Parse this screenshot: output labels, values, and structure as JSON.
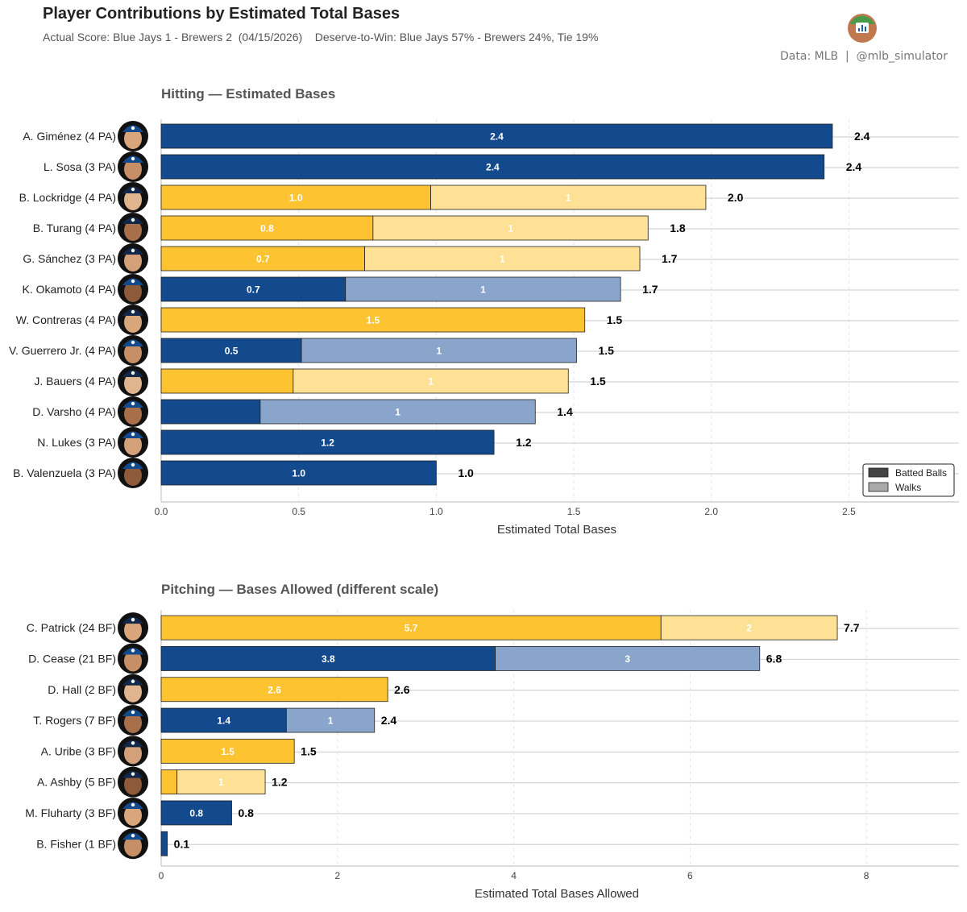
{
  "header": {
    "title": "Player Contributions by Estimated Total Bases",
    "subtitle": "Actual Score: Blue Jays 1 - Brewers 2  (04/15/2026)    Deserve-to-Win: Blue Jays 57% - Brewers 24%, Tie 19%",
    "credit": "Data: MLB  |  @mlb_simulator"
  },
  "colors": {
    "blue_dark": "#134a8e",
    "blue_light": "#8aa5cb",
    "gold_dark": "#fdc331",
    "gold_light": "#fee195",
    "legend_dark": "#444444",
    "legend_light": "#aaaaaa"
  },
  "legend": {
    "batted_balls": "Batted Balls",
    "walks": "Walks"
  },
  "chart_data": [
    {
      "type": "bar",
      "orientation": "horizontal",
      "stacked": true,
      "title": "Hitting — Estimated Bases",
      "xlabel": "Estimated Total Bases",
      "xlim": [
        0,
        2.9
      ],
      "xticks": [
        0,
        0.5,
        1,
        1.5,
        2,
        2.5
      ],
      "xtick_labels": [
        "0.0",
        "0.5",
        "1.0",
        "1.5",
        "2.0",
        "2.5"
      ],
      "legend_position": "bottom-right",
      "rows": [
        {
          "label": "A. Giménez  (4 PA)",
          "team": "blue",
          "batted": 2.44,
          "walks": 0,
          "batted_label": "2.4",
          "walks_label": "",
          "total_label": "2.4"
        },
        {
          "label": "L. Sosa  (3 PA)",
          "team": "blue",
          "batted": 2.41,
          "walks": 0,
          "batted_label": "2.4",
          "walks_label": "",
          "total_label": "2.4"
        },
        {
          "label": "B. Lockridge  (4 PA)",
          "team": "gold",
          "batted": 0.98,
          "walks": 1,
          "batted_label": "1.0",
          "walks_label": "1",
          "total_label": "2.0"
        },
        {
          "label": "B. Turang  (4 PA)",
          "team": "gold",
          "batted": 0.77,
          "walks": 1,
          "batted_label": "0.8",
          "walks_label": "1",
          "total_label": "1.8"
        },
        {
          "label": "G. Sánchez  (3 PA)",
          "team": "gold",
          "batted": 0.74,
          "walks": 1,
          "batted_label": "0.7",
          "walks_label": "1",
          "total_label": "1.7"
        },
        {
          "label": "K. Okamoto  (4 PA)",
          "team": "blue",
          "batted": 0.67,
          "walks": 1,
          "batted_label": "0.7",
          "walks_label": "1",
          "total_label": "1.7"
        },
        {
          "label": "W. Contreras  (4 PA)",
          "team": "gold",
          "batted": 1.54,
          "walks": 0,
          "batted_label": "1.5",
          "walks_label": "",
          "total_label": "1.5"
        },
        {
          "label": "V. Guerrero Jr.  (4 PA)",
          "team": "blue",
          "batted": 0.51,
          "walks": 1,
          "batted_label": "0.5",
          "walks_label": "1",
          "total_label": "1.5"
        },
        {
          "label": "J. Bauers  (4 PA)",
          "team": "gold",
          "batted": 0.48,
          "walks": 1,
          "batted_label": "",
          "walks_label": "1",
          "total_label": "1.5"
        },
        {
          "label": "D. Varsho  (4 PA)",
          "team": "blue",
          "batted": 0.36,
          "walks": 1,
          "batted_label": "",
          "walks_label": "1",
          "total_label": "1.4"
        },
        {
          "label": "N. Lukes  (3 PA)",
          "team": "blue",
          "batted": 1.21,
          "walks": 0,
          "batted_label": "1.2",
          "walks_label": "",
          "total_label": "1.2"
        },
        {
          "label": "B. Valenzuela  (3 PA)",
          "team": "blue",
          "batted": 1.0,
          "walks": 0,
          "batted_label": "1.0",
          "walks_label": "",
          "total_label": "1.0"
        }
      ]
    },
    {
      "type": "bar",
      "orientation": "horizontal",
      "stacked": true,
      "title": "Pitching — Bases Allowed  (different scale)",
      "xlabel": "Estimated Total Bases Allowed",
      "xlim": [
        0,
        9.05
      ],
      "xticks": [
        0,
        2,
        4,
        6,
        8
      ],
      "xtick_labels": [
        "0",
        "2",
        "4",
        "6",
        "8"
      ],
      "rows": [
        {
          "label": "C. Patrick  (24 BF)",
          "team": "gold",
          "batted": 5.67,
          "walks": 2,
          "batted_label": "5.7",
          "walks_label": "2",
          "total_label": "7.7"
        },
        {
          "label": "D. Cease  (21 BF)",
          "team": "blue",
          "batted": 3.79,
          "walks": 3,
          "batted_label": "3.8",
          "walks_label": "3",
          "total_label": "6.8"
        },
        {
          "label": "D. Hall  (2 BF)",
          "team": "gold",
          "batted": 2.57,
          "walks": 0,
          "batted_label": "2.6",
          "walks_label": "",
          "total_label": "2.6"
        },
        {
          "label": "T. Rogers  (7 BF)",
          "team": "blue",
          "batted": 1.42,
          "walks": 1,
          "batted_label": "1.4",
          "walks_label": "1",
          "total_label": "2.4"
        },
        {
          "label": "A. Uribe  (3 BF)",
          "team": "gold",
          "batted": 1.51,
          "walks": 0,
          "batted_label": "1.5",
          "walks_label": "",
          "total_label": "1.5"
        },
        {
          "label": "A. Ashby  (5 BF)",
          "team": "gold",
          "batted": 0.18,
          "walks": 1,
          "batted_label": "",
          "walks_label": "1",
          "total_label": "1.2"
        },
        {
          "label": "M. Fluharty  (3 BF)",
          "team": "blue",
          "batted": 0.8,
          "walks": 0,
          "batted_label": "0.8",
          "walks_label": "",
          "total_label": "0.8"
        },
        {
          "label": "B. Fisher  (1 BF)",
          "team": "blue",
          "batted": 0.07,
          "walks": 0,
          "batted_label": "",
          "walks_label": "",
          "total_label": "0.1"
        }
      ]
    }
  ]
}
